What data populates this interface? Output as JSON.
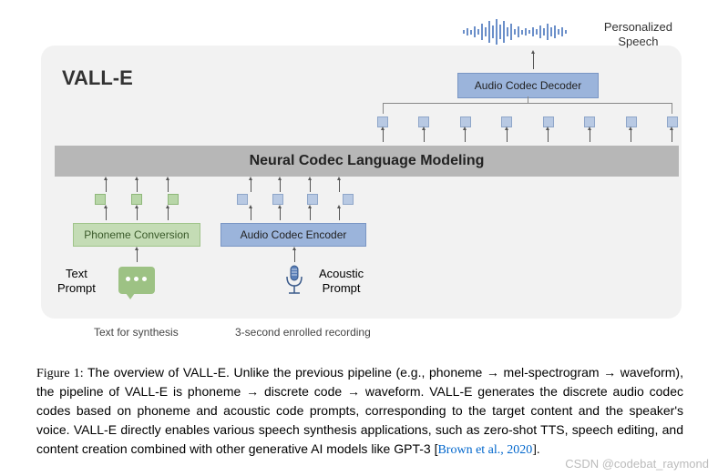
{
  "diagram": {
    "title": "VALL-E",
    "output_label_line1": "Personalized",
    "output_label_line2": "Speech",
    "decoder_label": "Audio Codec Decoder",
    "nclm_label": "Neural Codec Language Modeling",
    "phoneme_box_label": "Phoneme Conversion",
    "encoder_box_label": "Audio Codec Encoder",
    "text_prompt_line1": "Text",
    "text_prompt_line2": "Prompt",
    "acoustic_prompt_line1": "Acoustic",
    "acoustic_prompt_line2": "Prompt",
    "synthesis_label": "Text for synthesis",
    "enrolled_label": "3-second enrolled recording",
    "colors": {
      "bg_box": "#f2f2f2",
      "blue_box": "#9bb4db",
      "blue_border": "#7a96c4",
      "blue_token": "#b8c9e3",
      "green_box": "#c4dcb5",
      "green_border": "#a0c48a",
      "green_token": "#b8d6a8",
      "green_bubble": "#9dc284",
      "gray_bar": "#b7b7b7",
      "waveform": "#6b8fc9"
    },
    "waveform_heights": [
      4,
      8,
      5,
      12,
      6,
      18,
      10,
      24,
      14,
      28,
      16,
      24,
      10,
      18,
      6,
      12,
      5,
      8,
      4,
      10,
      6,
      14,
      8,
      18,
      10,
      14,
      6,
      10,
      4
    ],
    "top_token_count": 8,
    "phoneme_token_count": 3,
    "audio_token_count": 4
  },
  "caption": {
    "fig_label": "Figure 1:",
    "text_part1": "  The overview of VALL-E. Unlike the previous pipeline (e.g., phoneme → mel-spectrogram → waveform), the pipeline of VALL-E is phoneme → discrete code → waveform.  VALL-E generates the discrete audio codec codes based on phoneme and acoustic code prompts, corresponding to the target content and the speaker's voice.  VALL-E directly enables various speech synthesis applications, such as zero-shot TTS, speech editing, and content creation combined with other generative AI models like GPT-3 [",
    "ref_text": "Brown et al., 2020",
    "text_part2": "]."
  },
  "watermark": "CSDN @codebat_raymond"
}
